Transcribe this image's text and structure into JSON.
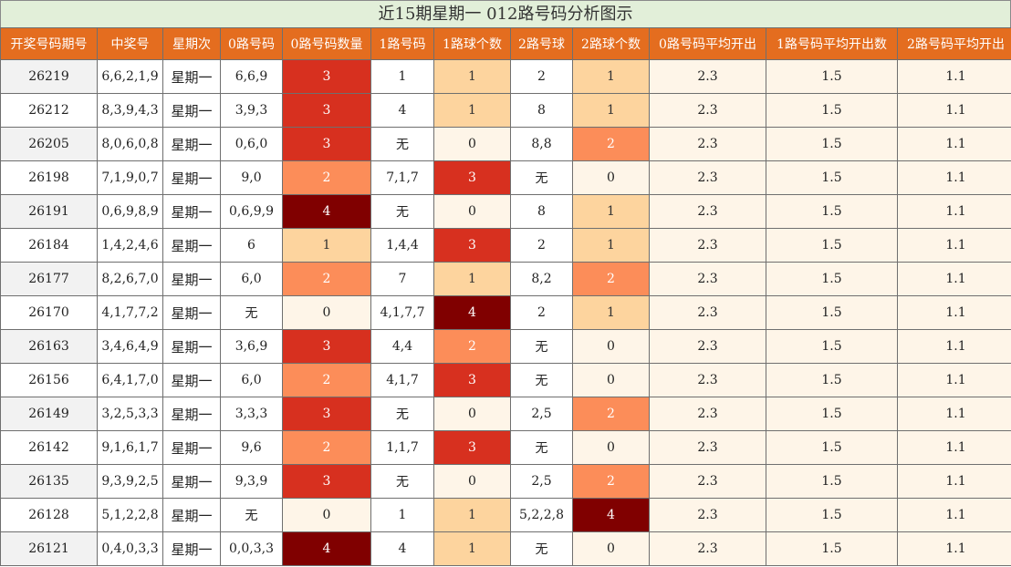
{
  "title": "近15期星期一 012路号码分析图示",
  "headers": [
    "开奖号码期号",
    "中奖号",
    "星期次",
    "0路号码",
    "0路号码数量",
    "1路号码",
    "1路球个数",
    "2路号球",
    "2路球个数",
    "0路号码平均开出",
    "1路号码平均开出数",
    "2路号码平均开出"
  ],
  "rows": [
    {
      "issue": "26219",
      "number": "6,6,2,1,9",
      "weekday": "星期一",
      "road0": "6,6,9",
      "road0_count": "3",
      "road1": "1",
      "road1_count": "1",
      "road2": "2",
      "road2_count": "1",
      "avg0": "2.3",
      "avg1": "1.5",
      "avg2": "1.1"
    },
    {
      "issue": "26212",
      "number": "8,3,9,4,3",
      "weekday": "星期一",
      "road0": "3,9,3",
      "road0_count": "3",
      "road1": "4",
      "road1_count": "1",
      "road2": "8",
      "road2_count": "1",
      "avg0": "2.3",
      "avg1": "1.5",
      "avg2": "1.1"
    },
    {
      "issue": "26205",
      "number": "8,0,6,0,8",
      "weekday": "星期一",
      "road0": "0,6,0",
      "road0_count": "3",
      "road1": "无",
      "road1_count": "0",
      "road2": "8,8",
      "road2_count": "2",
      "avg0": "2.3",
      "avg1": "1.5",
      "avg2": "1.1"
    },
    {
      "issue": "26198",
      "number": "7,1,9,0,7",
      "weekday": "星期一",
      "road0": "9,0",
      "road0_count": "2",
      "road1": "7,1,7",
      "road1_count": "3",
      "road2": "无",
      "road2_count": "0",
      "avg0": "2.3",
      "avg1": "1.5",
      "avg2": "1.1"
    },
    {
      "issue": "26191",
      "number": "0,6,9,8,9",
      "weekday": "星期一",
      "road0": "0,6,9,9",
      "road0_count": "4",
      "road1": "无",
      "road1_count": "0",
      "road2": "8",
      "road2_count": "1",
      "avg0": "2.3",
      "avg1": "1.5",
      "avg2": "1.1"
    },
    {
      "issue": "26184",
      "number": "1,4,2,4,6",
      "weekday": "星期一",
      "road0": "6",
      "road0_count": "1",
      "road1": "1,4,4",
      "road1_count": "3",
      "road2": "2",
      "road2_count": "1",
      "avg0": "2.3",
      "avg1": "1.5",
      "avg2": "1.1"
    },
    {
      "issue": "26177",
      "number": "8,2,6,7,0",
      "weekday": "星期一",
      "road0": "6,0",
      "road0_count": "2",
      "road1": "7",
      "road1_count": "1",
      "road2": "8,2",
      "road2_count": "2",
      "avg0": "2.3",
      "avg1": "1.5",
      "avg2": "1.1"
    },
    {
      "issue": "26170",
      "number": "4,1,7,7,2",
      "weekday": "星期一",
      "road0": "无",
      "road0_count": "0",
      "road1": "4,1,7,7",
      "road1_count": "4",
      "road2": "2",
      "road2_count": "1",
      "avg0": "2.3",
      "avg1": "1.5",
      "avg2": "1.1"
    },
    {
      "issue": "26163",
      "number": "3,4,6,4,9",
      "weekday": "星期一",
      "road0": "3,6,9",
      "road0_count": "3",
      "road1": "4,4",
      "road1_count": "2",
      "road2": "无",
      "road2_count": "0",
      "avg0": "2.3",
      "avg1": "1.5",
      "avg2": "1.1"
    },
    {
      "issue": "26156",
      "number": "6,4,1,7,0",
      "weekday": "星期一",
      "road0": "6,0",
      "road0_count": "2",
      "road1": "4,1,7",
      "road1_count": "3",
      "road2": "无",
      "road2_count": "0",
      "avg0": "2.3",
      "avg1": "1.5",
      "avg2": "1.1"
    },
    {
      "issue": "26149",
      "number": "3,2,5,3,3",
      "weekday": "星期一",
      "road0": "3,3,3",
      "road0_count": "3",
      "road1": "无",
      "road1_count": "0",
      "road2": "2,5",
      "road2_count": "2",
      "avg0": "2.3",
      "avg1": "1.5",
      "avg2": "1.1"
    },
    {
      "issue": "26142",
      "number": "9,1,6,1,7",
      "weekday": "星期一",
      "road0": "9,6",
      "road0_count": "2",
      "road1": "1,1,7",
      "road1_count": "3",
      "road2": "无",
      "road2_count": "0",
      "avg0": "2.3",
      "avg1": "1.5",
      "avg2": "1.1"
    },
    {
      "issue": "26135",
      "number": "9,3,9,2,5",
      "weekday": "星期一",
      "road0": "9,3,9",
      "road0_count": "3",
      "road1": "无",
      "road1_count": "0",
      "road2": "2,5",
      "road2_count": "2",
      "avg0": "2.3",
      "avg1": "1.5",
      "avg2": "1.1"
    },
    {
      "issue": "26128",
      "number": "5,1,2,2,8",
      "weekday": "星期一",
      "road0": "无",
      "road0_count": "0",
      "road1": "1",
      "road1_count": "1",
      "road2": "5,2,2,8",
      "road2_count": "4",
      "avg0": "2.3",
      "avg1": "1.5",
      "avg2": "1.1"
    },
    {
      "issue": "26121",
      "number": "0,4,0,3,3",
      "weekday": "星期一",
      "road0": "0,0,3,3",
      "road0_count": "4",
      "road1": "4",
      "road1_count": "1",
      "road2": "无",
      "road2_count": "0",
      "avg0": "2.3",
      "avg1": "1.5",
      "avg2": "1.1"
    }
  ],
  "heat_colors": {
    "0": {
      "bg": "#fef5e8",
      "fg": "#222222"
    },
    "1": {
      "bg": "#fdd49e",
      "fg": "#333333"
    },
    "2": {
      "bg": "#fc8d59",
      "fg": "#ffffff"
    },
    "3": {
      "bg": "#d7301f",
      "fg": "#ffffff"
    },
    "4": {
      "bg": "#800000",
      "fg": "#ffffff"
    }
  }
}
